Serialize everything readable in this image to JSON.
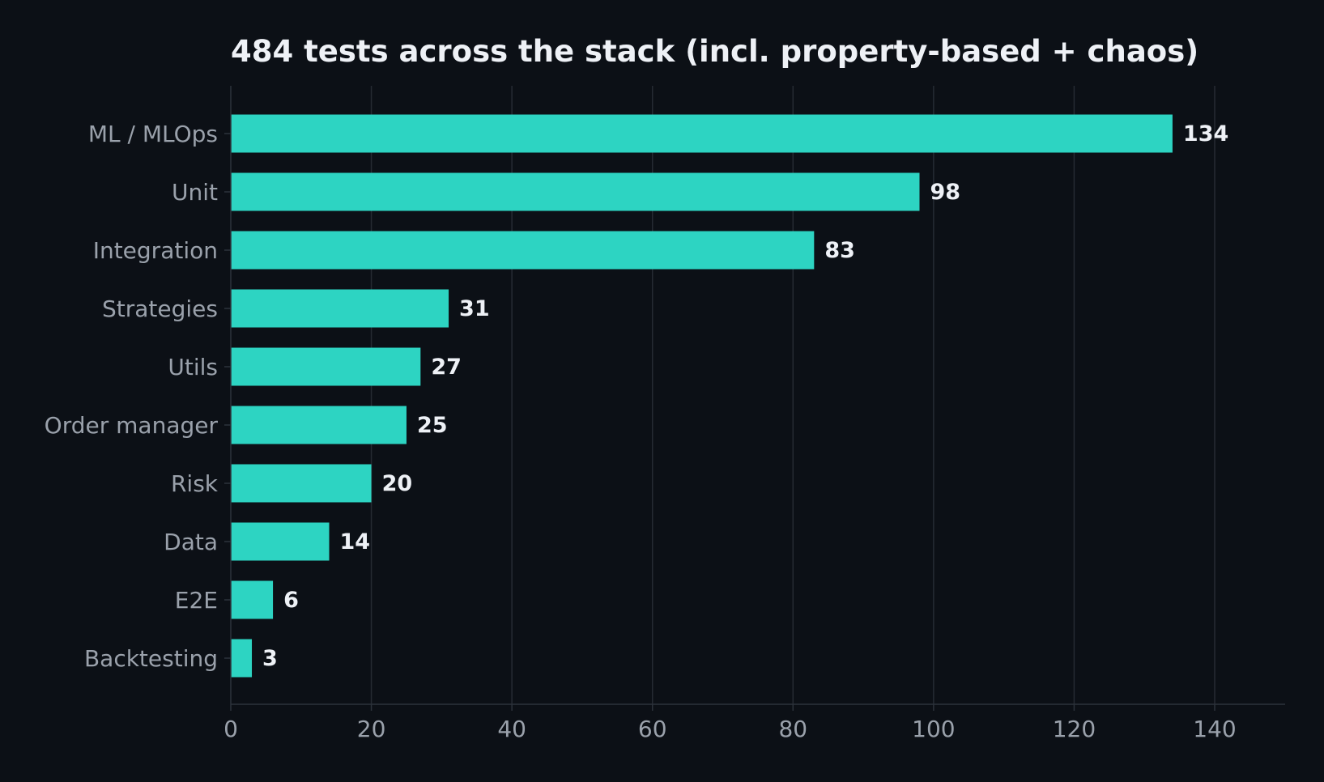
{
  "chart_data": {
    "type": "bar",
    "orientation": "horizontal",
    "title": "484 tests across the stack (incl. property-based + chaos)",
    "xlabel": "",
    "ylabel": "",
    "categories": [
      "ML / MLOps",
      "Unit",
      "Integration",
      "Strategies",
      "Utils",
      "Order manager",
      "Risk",
      "Data",
      "E2E",
      "Backtesting"
    ],
    "values": [
      134,
      98,
      83,
      31,
      27,
      25,
      20,
      14,
      6,
      3
    ],
    "data_labels": [
      "134",
      "98",
      "83",
      "31",
      "27",
      "25",
      "20",
      "14",
      "6",
      "3"
    ],
    "xlim": [
      0,
      150
    ],
    "xticks": [
      0,
      20,
      40,
      60,
      80,
      100,
      120,
      140
    ],
    "xtick_labels": [
      "0",
      "20",
      "40",
      "60",
      "80",
      "100",
      "120",
      "140"
    ],
    "grid": "vertical",
    "legend": "none",
    "colors": {
      "background": "#0c1016",
      "bar": "#2dd4c2",
      "title": "#eef1f6",
      "labels": "#9aa1ab",
      "data_labels": "#eef1f6",
      "grid": "#262b33"
    }
  }
}
